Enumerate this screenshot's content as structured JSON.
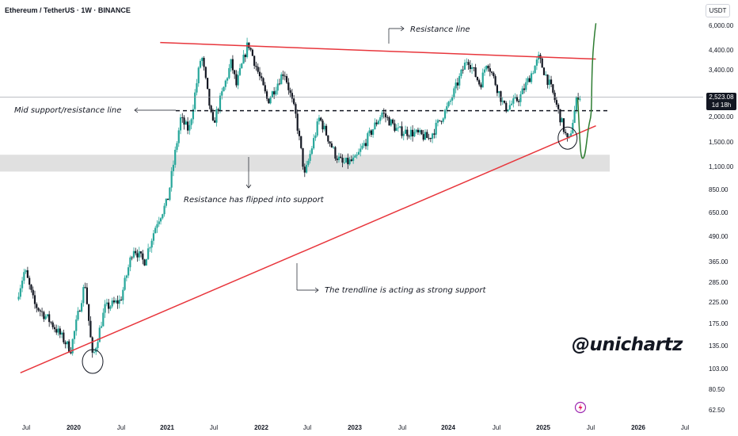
{
  "header": {
    "title": "Ethereum / TetherUS · 1W · BINANCE",
    "currency": "USDT"
  },
  "watermark": "@unichartz",
  "current_price": {
    "value": "2,523.08",
    "countdown": "1d 18h"
  },
  "colors": {
    "up": "#26a69a",
    "down": "#131722",
    "trendline": "#e8363c",
    "projection": "#2e7d32",
    "zone": "#e0e0e0",
    "logo": "#9c27b0"
  },
  "chart_data": {
    "type": "candlestick",
    "title": "Ethereum / TetherUS · 1W · BINANCE",
    "y_scale": "log",
    "y_tick_labels": [
      "6,000.00",
      "4,400.00",
      "3,400.00",
      "2,000.00",
      "1,500.00",
      "1,100.00",
      "850.00",
      "650.00",
      "490.00",
      "365.00",
      "285.00",
      "225.00",
      "175.00",
      "135.00",
      "103.00",
      "80.50",
      "62.50"
    ],
    "x_tick_labels": [
      "Jul",
      "2020",
      "Jul",
      "2021",
      "Jul",
      "2022",
      "Jul",
      "2023",
      "Jul",
      "2024",
      "Jul",
      "2025",
      "Jul",
      "2026",
      "Jul"
    ],
    "price_path": [
      [
        "2019-06-01",
        255
      ],
      [
        "2019-06-25",
        330
      ],
      [
        "2019-08-01",
        220
      ],
      [
        "2019-10-01",
        180
      ],
      [
        "2019-11-15",
        150
      ],
      [
        "2019-12-20",
        128
      ],
      [
        "2020-02-14",
        285
      ],
      [
        "2020-03-15",
        115
      ],
      [
        "2020-05-01",
        210
      ],
      [
        "2020-07-01",
        230
      ],
      [
        "2020-08-20",
        430
      ],
      [
        "2020-10-01",
        360
      ],
      [
        "2020-11-20",
        580
      ],
      [
        "2020-12-31",
        740
      ],
      [
        "2021-02-20",
        1950
      ],
      [
        "2021-03-25",
        1700
      ],
      [
        "2021-05-12",
        4200
      ],
      [
        "2021-06-25",
        1800
      ],
      [
        "2021-09-05",
        3800
      ],
      [
        "2021-09-25",
        2900
      ],
      [
        "2021-11-10",
        4800
      ],
      [
        "2022-01-25",
        2400
      ],
      [
        "2022-03-30",
        3450
      ],
      [
        "2022-05-15",
        2000
      ],
      [
        "2022-06-18",
        1000
      ],
      [
        "2022-08-14",
        1980
      ],
      [
        "2022-10-15",
        1280
      ],
      [
        "2022-11-12",
        1150
      ],
      [
        "2022-12-31",
        1200
      ],
      [
        "2023-04-15",
        2100
      ],
      [
        "2023-06-15",
        1700
      ],
      [
        "2023-08-20",
        1650
      ],
      [
        "2023-10-15",
        1550
      ],
      [
        "2023-12-31",
        2300
      ],
      [
        "2024-03-12",
        4000
      ],
      [
        "2024-05-01",
        2900
      ],
      [
        "2024-05-27",
        3900
      ],
      [
        "2024-08-05",
        2200
      ],
      [
        "2024-10-01",
        2500
      ],
      [
        "2024-12-15",
        4000
      ],
      [
        "2025-02-05",
        2700
      ],
      [
        "2025-03-10",
        1950
      ],
      [
        "2025-04-09",
        1450
      ],
      [
        "2025-05-15",
        2600
      ],
      [
        "2025-05-28",
        2523
      ]
    ],
    "horizontal_levels": {
      "mid_support_resistance": 2150,
      "support_zone": [
        1050,
        1280
      ]
    },
    "resistance_line": [
      [
        "2021-05-12",
        4800
      ],
      [
        "2025-07-25",
        3950
      ]
    ],
    "support_line": [
      [
        "2019-11-15",
        98
      ],
      [
        "2025-07-25",
        1800
      ]
    ],
    "projection_path": [
      [
        "2025-05-15",
        2500
      ],
      [
        "2025-06-01",
        1600
      ],
      [
        "2025-06-05",
        1300
      ],
      [
        "2025-06-20",
        1600
      ],
      [
        "2025-07-25",
        5000
      ]
    ],
    "annotations": {
      "resistance": "Resistance line",
      "mid_line": "Mid support/resistance line",
      "flipped": "Resistance has flipped into support",
      "trendline": "The trendline is acting as strong support"
    }
  }
}
